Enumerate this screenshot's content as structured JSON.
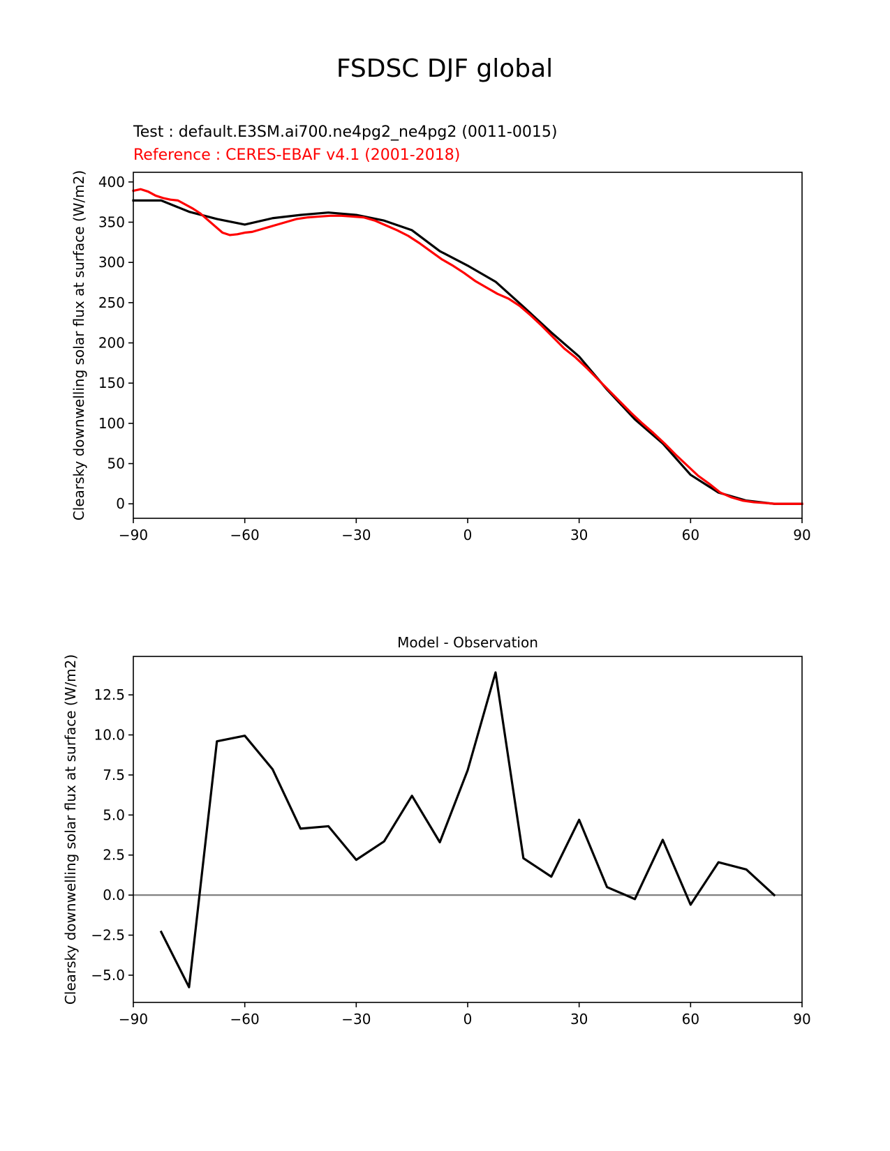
{
  "figure": {
    "title": "FSDSC DJF global"
  },
  "chart_data": [
    {
      "type": "line",
      "title_test": "Test : default.E3SM.ai700.ne4pg2_ne4pg2 (0011-0015)",
      "title_reference": "Reference : CERES-EBAF v4.1 (2001-2018)",
      "xlabel": "",
      "ylabel": "Clearsky downwelling solar flux at surface (W/m2)",
      "xlim": [
        -90,
        90
      ],
      "ylim": [
        -18,
        412
      ],
      "xticks": [
        -90,
        -60,
        -30,
        0,
        30,
        60,
        90
      ],
      "xtick_labels": [
        "−90",
        "−60",
        "−30",
        "0",
        "30",
        "60",
        "90"
      ],
      "yticks": [
        0,
        50,
        100,
        150,
        200,
        250,
        300,
        350,
        400
      ],
      "ytick_labels": [
        "0",
        "50",
        "100",
        "150",
        "200",
        "250",
        "300",
        "350",
        "400"
      ],
      "grid": false,
      "colors": {
        "test": "#000000",
        "reference": "#ff0000"
      },
      "series": [
        {
          "role": "test",
          "x": [
            -90,
            -82.5,
            -75,
            -67.5,
            -60,
            -52.5,
            -45,
            -37.5,
            -30,
            -22.5,
            -15,
            -7.5,
            0,
            7.5,
            15,
            22.5,
            30,
            37.5,
            45,
            52.5,
            60,
            67.5,
            75,
            82.5,
            90
          ],
          "y": [
            377,
            377,
            363,
            354,
            347,
            355,
            359,
            362,
            359,
            352,
            340,
            314,
            296,
            276,
            245,
            213,
            183,
            142,
            105,
            75,
            36,
            14,
            4,
            0,
            0
          ]
        },
        {
          "role": "reference",
          "x": [
            -90,
            -88,
            -86,
            -84,
            -82,
            -80,
            -78,
            -76,
            -74,
            -72,
            -70,
            -68,
            -66,
            -64,
            -62,
            -60,
            -58,
            -55,
            -52,
            -49,
            -46,
            -43,
            -40,
            -37,
            -34,
            -31,
            -28,
            -25,
            -22,
            -19,
            -16,
            -13,
            -10,
            -7,
            -4,
            -1,
            2,
            5,
            8,
            11,
            14,
            17,
            20,
            23,
            26,
            29,
            32,
            35,
            38,
            41,
            44,
            47,
            50,
            53,
            56,
            59,
            62,
            65,
            68,
            71,
            74,
            77,
            80,
            83,
            86,
            90
          ],
          "y": [
            389,
            391,
            388,
            383,
            380,
            378,
            377,
            372,
            367,
            361,
            353,
            345,
            337,
            334,
            335,
            337,
            338,
            342,
            346,
            350,
            354,
            356,
            357,
            358,
            358,
            357,
            356,
            352,
            346,
            340,
            333,
            324,
            314,
            304,
            296,
            287,
            277,
            269,
            261,
            255,
            246,
            234,
            221,
            207,
            193,
            182,
            169,
            155,
            141,
            127,
            113,
            100,
            88,
            75,
            61,
            48,
            35,
            25,
            14,
            8,
            4,
            2,
            1,
            0,
            0,
            0
          ]
        }
      ]
    },
    {
      "type": "line",
      "title": "Model - Observation",
      "xlabel": "",
      "ylabel": "Clearsky downwelling solar flux at surface (W/m2)",
      "xlim": [
        -90,
        90
      ],
      "ylim": [
        -6.7,
        14.9
      ],
      "xticks": [
        -90,
        -60,
        -30,
        0,
        30,
        60,
        90
      ],
      "xtick_labels": [
        "−90",
        "−60",
        "−30",
        "0",
        "30",
        "60",
        "90"
      ],
      "yticks": [
        -5,
        -2.5,
        0,
        2.5,
        5,
        7.5,
        10,
        12.5
      ],
      "ytick_labels": [
        "−5.0",
        "−2.5",
        "0.0",
        "2.5",
        "5.0",
        "7.5",
        "10.0",
        "12.5"
      ],
      "grid": false,
      "zero_line": true,
      "colors": {
        "line": "#000000",
        "zero_line": "#808080"
      },
      "series": [
        {
          "x": [
            -82.5,
            -75,
            -67.5,
            -60,
            -52.5,
            -45,
            -37.5,
            -30,
            -22.5,
            -15,
            -7.5,
            0,
            7.5,
            15,
            22.5,
            30,
            37.5,
            45,
            52.5,
            60,
            67.5,
            75,
            82.5
          ],
          "y": [
            -2.3,
            -5.75,
            9.6,
            9.95,
            7.85,
            4.15,
            4.3,
            2.2,
            3.35,
            6.2,
            3.3,
            7.8,
            13.9,
            2.3,
            1.15,
            4.7,
            0.5,
            -0.25,
            3.45,
            -0.6,
            2.05,
            1.6,
            0.0
          ]
        }
      ]
    }
  ]
}
